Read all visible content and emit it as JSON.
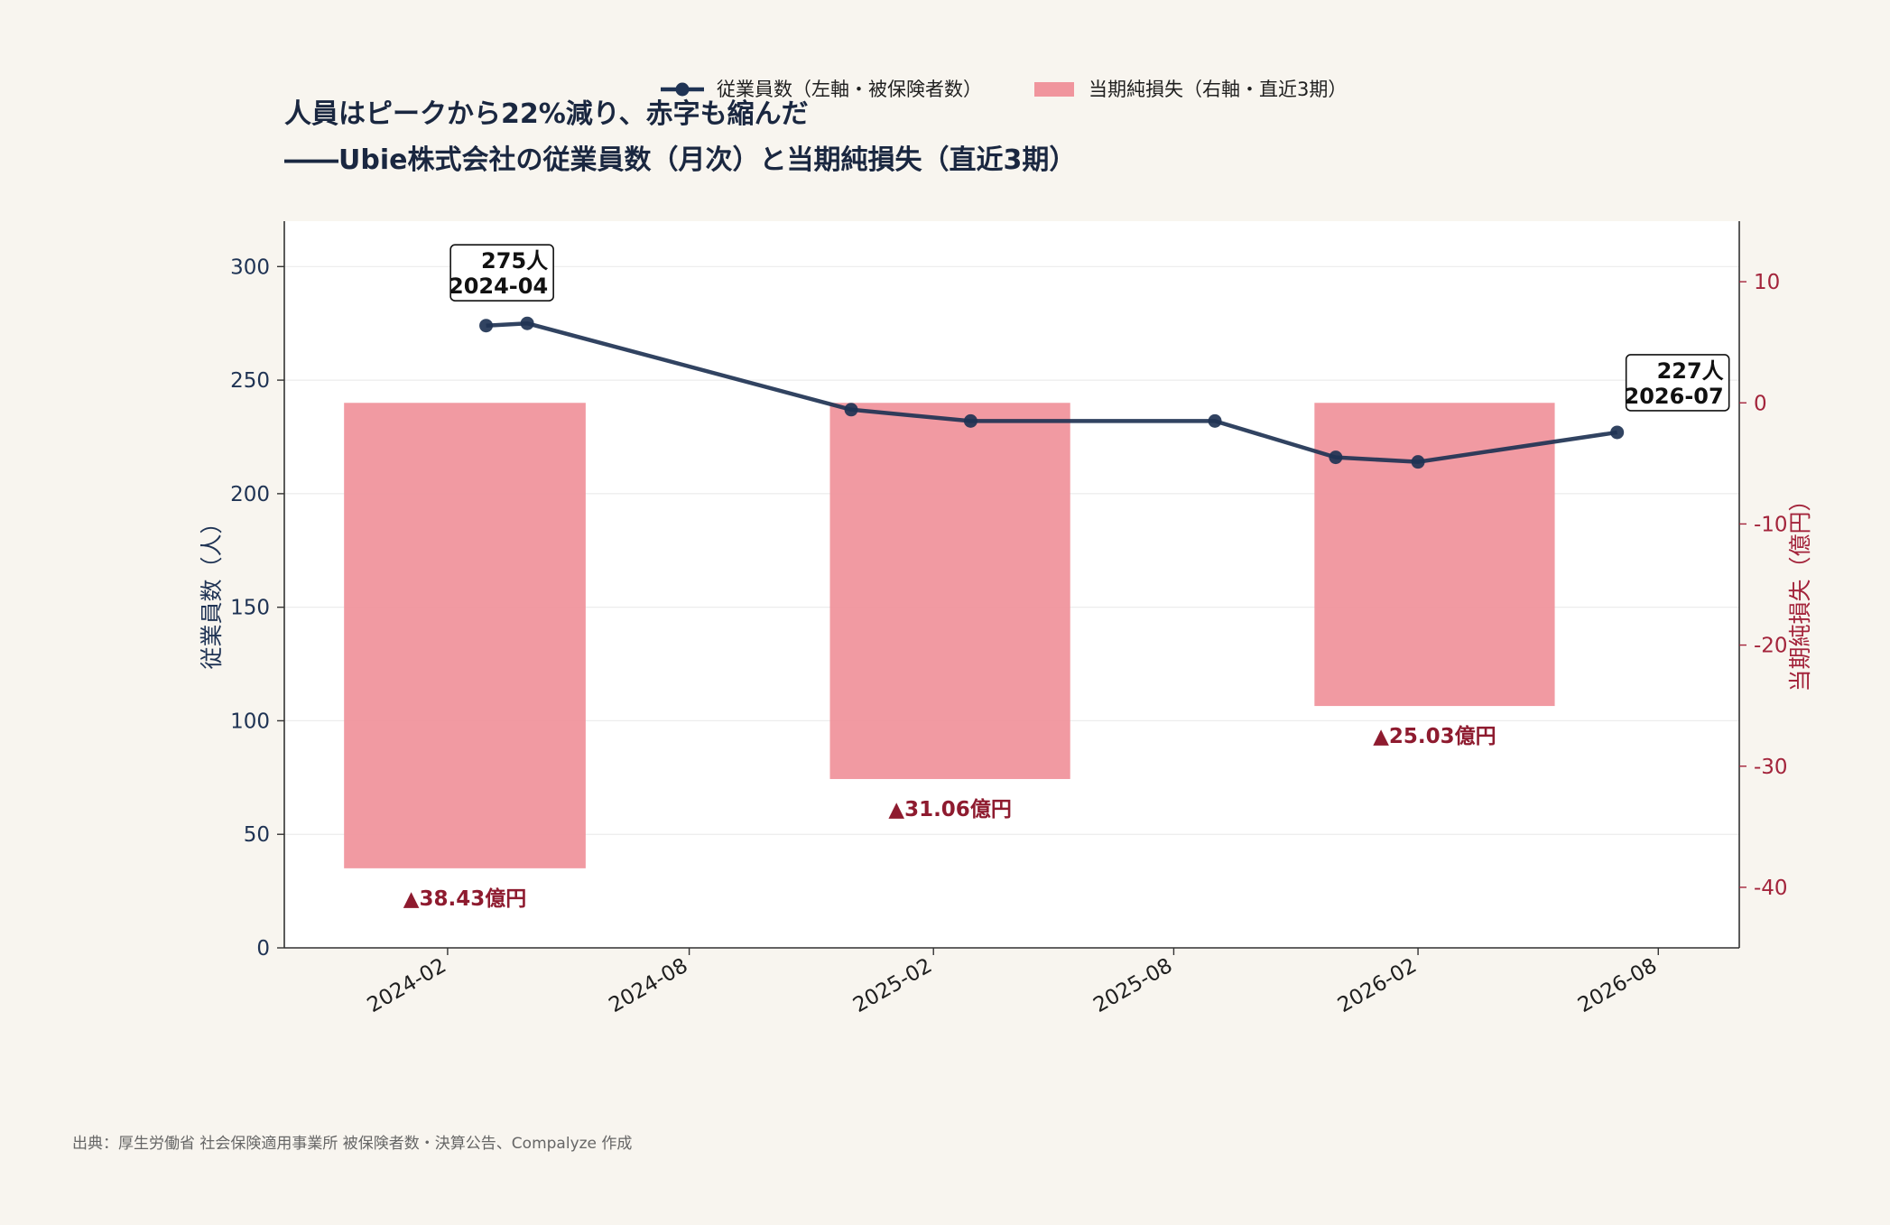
{
  "title_line1": "人員はピークから22%減り、赤字も縮んだ",
  "title_line2": "――Ubie株式会社の従業員数（月次）と当期純損失（直近3期）",
  "source": "出典：厚生労働省 社会保険適用事業所 被保険者数・決算公告、Compalyze 作成",
  "colors": {
    "background": "#f8f5ef",
    "line": "#1f3354",
    "bar": "#f0959d",
    "bar_label": "#8e1b2f",
    "right_axis": "#a3243b"
  },
  "chart_data": {
    "type": "bar+line",
    "legend": {
      "position": "top",
      "entries": [
        {
          "name": "従業員数（左軸・被保険者数）",
          "kind": "line"
        },
        {
          "name": "当期純損失（右軸・直近3期）",
          "kind": "bar"
        }
      ]
    },
    "y_left": {
      "label": "従業員数（人）",
      "ylim": [
        0,
        320
      ],
      "ticks": [
        0,
        50,
        100,
        150,
        200,
        250,
        300
      ]
    },
    "y_right": {
      "label": "当期純損失（億円）",
      "ylim": [
        -45,
        15
      ],
      "ticks": [
        10,
        0,
        -10,
        -20,
        -30,
        -40
      ]
    },
    "x_axis": {
      "type": "date",
      "range": [
        "2023-10-01",
        "2026-10-01"
      ],
      "ticks": [
        "2024-02",
        "2024-08",
        "2025-02",
        "2025-08",
        "2026-02",
        "2026-08"
      ]
    },
    "grid": true,
    "employees": {
      "name": "従業員数（左軸・被保険者数）",
      "points": [
        {
          "date": "2024-03",
          "value": 274
        },
        {
          "date": "2024-04",
          "value": 275
        },
        {
          "date": "2024-12",
          "value": 237
        },
        {
          "date": "2025-03",
          "value": 232
        },
        {
          "date": "2025-09",
          "value": 232
        },
        {
          "date": "2025-12",
          "value": 216
        },
        {
          "date": "2026-02",
          "value": 214
        },
        {
          "date": "2026-07",
          "value": 227
        }
      ]
    },
    "net_loss": {
      "name": "当期純損失（右軸・直近3期）",
      "bars": [
        {
          "start": "2023-11-15",
          "end": "2024-05-15",
          "value": -38.43,
          "label": "▲38.43億円"
        },
        {
          "start": "2024-11-15",
          "end": "2025-05-15",
          "value": -31.06,
          "label": "▲31.06億円"
        },
        {
          "start": "2025-11-15",
          "end": "2026-05-15",
          "value": -25.03,
          "label": "▲25.03億円"
        }
      ]
    },
    "annotations": [
      {
        "date": "2024-04",
        "value": 275,
        "lines": [
          "275人",
          "2024-04"
        ]
      },
      {
        "date": "2026-07",
        "value": 227,
        "lines": [
          "227人",
          "2026-07"
        ]
      }
    ]
  }
}
